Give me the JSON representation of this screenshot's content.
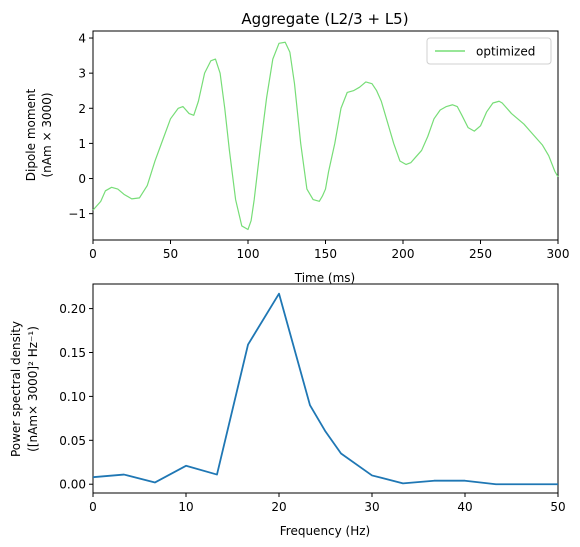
{
  "chart_data": [
    {
      "type": "line",
      "title": "Aggregate (L2/3 + L5)",
      "xlabel": "Time (ms)",
      "ylabel_lines": [
        "Dipole moment",
        "(nAm × 3000)"
      ],
      "xlim": [
        0,
        300
      ],
      "ylim": [
        -1.75,
        4.2
      ],
      "xticks": [
        0,
        50,
        100,
        150,
        200,
        250,
        300
      ],
      "xtick_labels": [
        "0",
        "50",
        "100",
        "150",
        "200",
        "250",
        "300"
      ],
      "yticks": [
        -1,
        0,
        1,
        2,
        3,
        4
      ],
      "ytick_labels": [
        "−1",
        "0",
        "1",
        "2",
        "3",
        "4"
      ],
      "legend_position": "top-right",
      "grid": false,
      "series": [
        {
          "name": "optimized",
          "color": "#77dd77",
          "x": [
            0,
            5,
            8,
            12,
            16,
            20,
            25,
            30,
            35,
            40,
            45,
            50,
            55,
            58,
            62,
            65,
            68,
            72,
            76,
            79,
            82,
            85,
            88,
            92,
            96,
            100,
            102,
            104,
            108,
            112,
            116,
            120,
            124,
            127,
            130,
            134,
            138,
            142,
            146,
            148,
            150,
            152,
            156,
            160,
            164,
            168,
            172,
            176,
            180,
            183,
            186,
            190,
            194,
            198,
            202,
            205,
            208,
            212,
            216,
            220,
            224,
            228,
            232,
            235,
            238,
            242,
            246,
            250,
            254,
            258,
            262,
            264,
            266,
            270,
            274,
            278,
            282,
            286,
            290,
            294,
            298,
            300
          ],
          "y": [
            -0.9,
            -0.65,
            -0.35,
            -0.25,
            -0.3,
            -0.45,
            -0.58,
            -0.55,
            -0.2,
            0.5,
            1.1,
            1.7,
            2.0,
            2.05,
            1.85,
            1.8,
            2.2,
            3.0,
            3.35,
            3.4,
            3.0,
            2.0,
            0.8,
            -0.6,
            -1.35,
            -1.45,
            -1.2,
            -0.6,
            0.9,
            2.3,
            3.4,
            3.85,
            3.88,
            3.6,
            2.7,
            1.0,
            -0.3,
            -0.6,
            -0.65,
            -0.5,
            -0.3,
            0.2,
            1.0,
            2.0,
            2.45,
            2.5,
            2.6,
            2.75,
            2.7,
            2.5,
            2.2,
            1.6,
            1.0,
            0.5,
            0.4,
            0.45,
            0.6,
            0.8,
            1.2,
            1.7,
            1.95,
            2.05,
            2.1,
            2.05,
            1.8,
            1.45,
            1.35,
            1.5,
            1.9,
            2.15,
            2.2,
            2.15,
            2.05,
            1.85,
            1.7,
            1.55,
            1.35,
            1.15,
            0.95,
            0.65,
            0.2,
            0.05
          ]
        }
      ]
    },
    {
      "type": "line",
      "title": "",
      "xlabel": "Frequency (Hz)",
      "ylabel_lines": [
        "Power spectral density",
        "([nAm× 3000]² Hz⁻¹)"
      ],
      "xlim": [
        0,
        50
      ],
      "ylim": [
        -0.01,
        0.228
      ],
      "xticks": [
        0,
        10,
        20,
        30,
        40,
        50
      ],
      "xtick_labels": [
        "0",
        "10",
        "20",
        "30",
        "40",
        "50"
      ],
      "yticks": [
        0.0,
        0.05,
        0.1,
        0.15,
        0.2
      ],
      "ytick_labels": [
        "0.00",
        "0.05",
        "0.10",
        "0.15",
        "0.20"
      ],
      "grid": false,
      "series": [
        {
          "color": "#1f77b4",
          "x": [
            0,
            3.33,
            6.67,
            10,
            13.33,
            16.67,
            20,
            23.33,
            25,
            26.67,
            30,
            33.33,
            36.67,
            40,
            43.33,
            46.67,
            50
          ],
          "y": [
            0.008,
            0.011,
            0.002,
            0.021,
            0.011,
            0.159,
            0.217,
            0.09,
            0.06,
            0.035,
            0.01,
            0.001,
            0.004,
            0.004,
            0.0,
            0.0,
            0.0
          ]
        }
      ]
    }
  ]
}
